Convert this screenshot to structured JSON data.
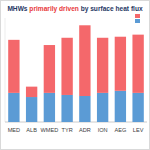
{
  "chart_data": {
    "type": "bar",
    "title": "MHWs primarily driven by surface heat flux",
    "categories": [
      "MED",
      "ALB",
      "WMED",
      "TYR",
      "ADR",
      "ION",
      "AEG",
      "LEV"
    ],
    "series": [
      {
        "color": "#5b9bd5",
        "values": [
          28,
          24,
          28,
          26,
          25,
          28,
          30,
          28
        ]
      },
      {
        "color": "#f4686b",
        "values": [
          51,
          10,
          46,
          55,
          68,
          53,
          52,
          56
        ]
      }
    ],
    "stacked": true,
    "ylim": [
      0,
      100
    ],
    "tick_labels": "x",
    "legend": "upper right"
  }
}
